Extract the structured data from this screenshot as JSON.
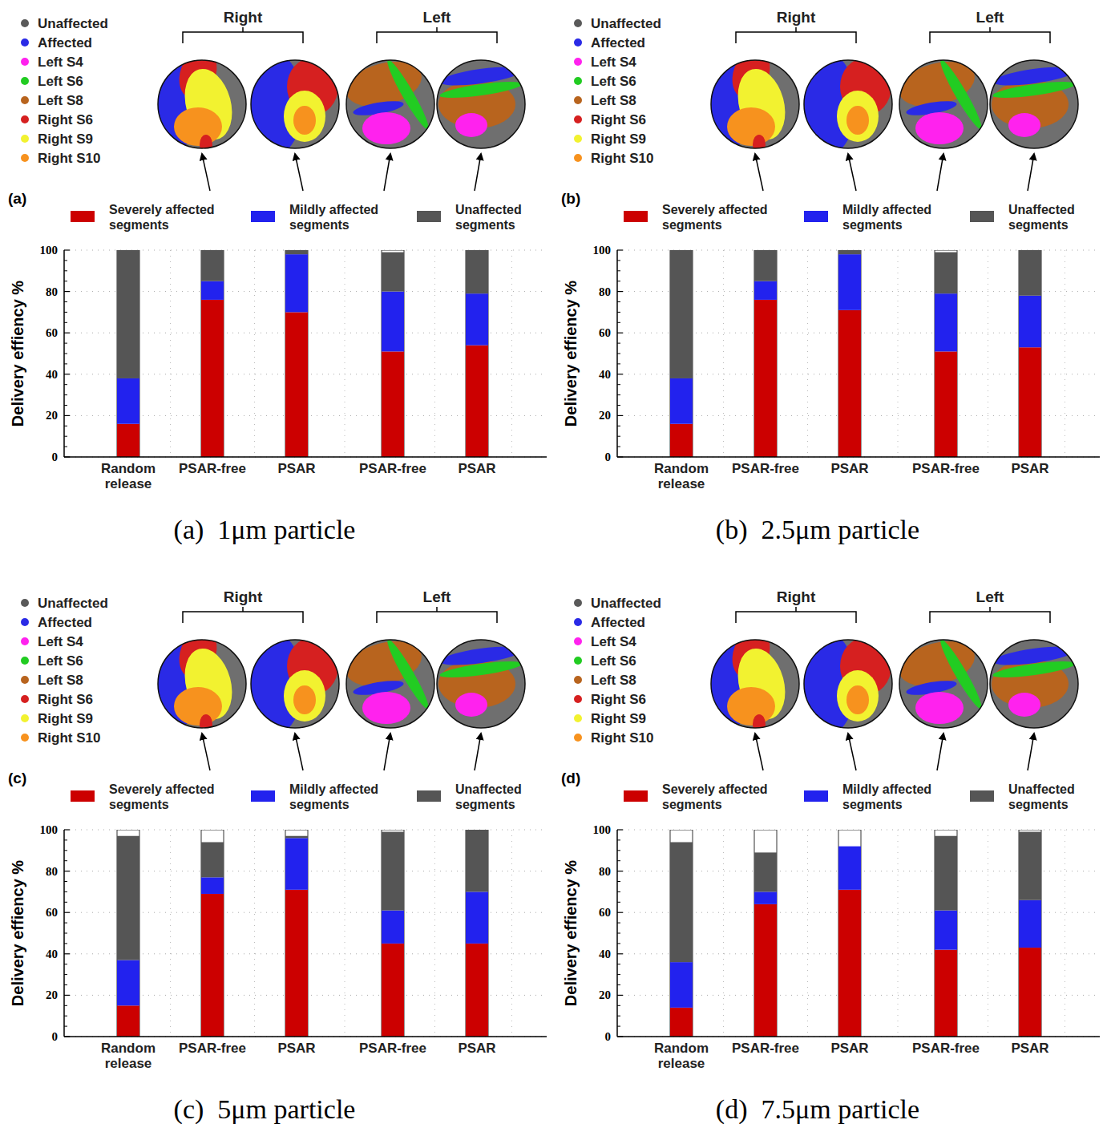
{
  "chart_data": [
    {
      "type": "bar",
      "stacked": true,
      "grid": true,
      "title": "(a)  1μm particle",
      "panel_label": "(a)",
      "y_label": "Delivery effiency %",
      "annotations": [
        "Right",
        "Left"
      ],
      "image_legend": [
        {
          "name": "Unaffected",
          "color": "#5a5a5a"
        },
        {
          "name": "Affected",
          "color": "#2a2ae6"
        },
        {
          "name": "Left S4",
          "color": "#ff22ee"
        },
        {
          "name": "Left S6",
          "color": "#22cc22"
        },
        {
          "name": "Left S8",
          "color": "#b8641e"
        },
        {
          "name": "Right S6",
          "color": "#d62020"
        },
        {
          "name": "Right S9",
          "color": "#f2f230"
        },
        {
          "name": "Right S10",
          "color": "#f7921e"
        }
      ],
      "categories": [
        "Random release",
        "PSAR-free",
        "PSAR",
        "PSAR-free",
        "PSAR"
      ],
      "series": [
        {
          "name": "Severely affected segments",
          "color": "#cc0000",
          "values": [
            16,
            76,
            70,
            51,
            54
          ]
        },
        {
          "name": "Mildly affected segments",
          "color": "#2222ee",
          "values": [
            22,
            9,
            28,
            29,
            25
          ]
        },
        {
          "name": "Unaffected segments",
          "color": "#555555",
          "values": [
            62,
            15,
            2,
            19,
            21
          ]
        }
      ],
      "ylim": [
        0,
        100
      ],
      "yticks": [
        0,
        20,
        40,
        60,
        80,
        100
      ],
      "legend": "top"
    },
    {
      "type": "bar",
      "stacked": true,
      "grid": true,
      "title": "(b)  2.5μm particle",
      "panel_label": "(b)",
      "y_label": "Delivery effiency %",
      "annotations": [
        "Right",
        "Left"
      ],
      "image_legend": [
        {
          "name": "Unaffected",
          "color": "#5a5a5a"
        },
        {
          "name": "Affected",
          "color": "#2a2ae6"
        },
        {
          "name": "Left S4",
          "color": "#ff22ee"
        },
        {
          "name": "Left S6",
          "color": "#22cc22"
        },
        {
          "name": "Left S8",
          "color": "#b8641e"
        },
        {
          "name": "Right S6",
          "color": "#d62020"
        },
        {
          "name": "Right S9",
          "color": "#f2f230"
        },
        {
          "name": "Right S10",
          "color": "#f7921e"
        }
      ],
      "categories": [
        "Random release",
        "PSAR-free",
        "PSAR",
        "PSAR-free",
        "PSAR"
      ],
      "series": [
        {
          "name": "Severely affected segments",
          "color": "#cc0000",
          "values": [
            16,
            76,
            71,
            51,
            53
          ]
        },
        {
          "name": "Mildly affected segments",
          "color": "#2222ee",
          "values": [
            22,
            9,
            27,
            28,
            25
          ]
        },
        {
          "name": "Unaffected segments",
          "color": "#555555",
          "values": [
            62,
            15,
            2,
            20,
            22
          ]
        }
      ],
      "ylim": [
        0,
        100
      ],
      "yticks": [
        0,
        20,
        40,
        60,
        80,
        100
      ],
      "legend": "top"
    },
    {
      "type": "bar",
      "stacked": true,
      "grid": true,
      "title": "(c)  5μm particle",
      "panel_label": "(c)",
      "y_label": "Delivery effiency %",
      "annotations": [
        "Right",
        "Left"
      ],
      "image_legend": [
        {
          "name": "Unaffected",
          "color": "#5a5a5a"
        },
        {
          "name": "Affected",
          "color": "#2a2ae6"
        },
        {
          "name": "Left S4",
          "color": "#ff22ee"
        },
        {
          "name": "Left S6",
          "color": "#22cc22"
        },
        {
          "name": "Left S8",
          "color": "#b8641e"
        },
        {
          "name": "Right S6",
          "color": "#d62020"
        },
        {
          "name": "Right S9",
          "color": "#f2f230"
        },
        {
          "name": "Right S10",
          "color": "#f7921e"
        }
      ],
      "categories": [
        "Random release",
        "PSAR-free",
        "PSAR",
        "PSAR-free",
        "PSAR"
      ],
      "series": [
        {
          "name": "Severely affected segments",
          "color": "#cc0000",
          "values": [
            15,
            69,
            71,
            45,
            45
          ]
        },
        {
          "name": "Mildly affected segments",
          "color": "#2222ee",
          "values": [
            22,
            8,
            25,
            16,
            25
          ]
        },
        {
          "name": "Unaffected segments",
          "color": "#555555",
          "values": [
            60,
            17,
            1,
            38,
            30
          ]
        }
      ],
      "ylim": [
        0,
        100
      ],
      "yticks": [
        0,
        20,
        40,
        60,
        80,
        100
      ],
      "legend": "top"
    },
    {
      "type": "bar",
      "stacked": true,
      "grid": true,
      "title": "(d)  7.5μm particle",
      "panel_label": "(d)",
      "y_label": "Delivery effiency %",
      "annotations": [
        "Right",
        "Left"
      ],
      "image_legend": [
        {
          "name": "Unaffected",
          "color": "#5a5a5a"
        },
        {
          "name": "Affected",
          "color": "#2a2ae6"
        },
        {
          "name": "Left S4",
          "color": "#ff22ee"
        },
        {
          "name": "Left S6",
          "color": "#22cc22"
        },
        {
          "name": "Left S8",
          "color": "#b8641e"
        },
        {
          "name": "Right S6",
          "color": "#d62020"
        },
        {
          "name": "Right S9",
          "color": "#f2f230"
        },
        {
          "name": "Right S10",
          "color": "#f7921e"
        }
      ],
      "categories": [
        "Random release",
        "PSAR-free",
        "PSAR",
        "PSAR-free",
        "PSAR"
      ],
      "series": [
        {
          "name": "Severely affected segments",
          "color": "#cc0000",
          "values": [
            14,
            64,
            71,
            42,
            43
          ]
        },
        {
          "name": "Mildly affected segments",
          "color": "#2222ee",
          "values": [
            22,
            6,
            21,
            19,
            23
          ]
        },
        {
          "name": "Unaffected segments",
          "color": "#555555",
          "values": [
            58,
            19,
            0,
            36,
            33
          ]
        }
      ],
      "ylim": [
        0,
        100
      ],
      "yticks": [
        0,
        20,
        40,
        60,
        80,
        100
      ],
      "legend": "top"
    }
  ]
}
